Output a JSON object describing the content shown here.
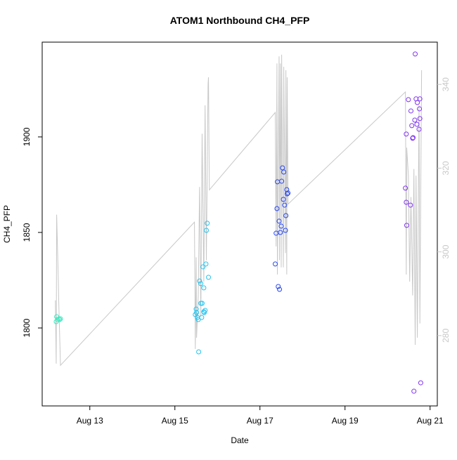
{
  "chart_data": {
    "type": "scatter",
    "title": "ATOM1 Northbound CH4_PFP",
    "x_label": "Date",
    "y_label": "CH4_PFP",
    "xlim": [
      11.88,
      21.17
    ],
    "xticks": [
      {
        "value": 13,
        "label": "Aug 13"
      },
      {
        "value": 15,
        "label": "Aug 15"
      },
      {
        "value": 17,
        "label": "Aug 17"
      },
      {
        "value": 19,
        "label": "Aug 19"
      },
      {
        "value": 21,
        "label": "Aug 21"
      }
    ],
    "ylim": [
      1759.2,
      1949.6
    ],
    "yticks": [
      1800,
      1850,
      1900
    ],
    "y2lim": [
      263.2,
      350.1
    ],
    "y2ticks": [
      280,
      300,
      320,
      340
    ],
    "grid": false,
    "series": [
      {
        "type": "line",
        "axis": "y2",
        "color": "#c8c8c8",
        "x": [
          12.19,
          12.21,
          12.22,
          12.26,
          12.27,
          12.31,
          15.46,
          15.48,
          15.5,
          15.51,
          15.55,
          15.58,
          15.61,
          15.64,
          15.68,
          15.71,
          15.74,
          15.78,
          15.79,
          15.81,
          17.36,
          17.38,
          17.4,
          17.41,
          17.45,
          17.46,
          17.48,
          17.5,
          17.51,
          17.55,
          17.56,
          17.6,
          17.61,
          17.63,
          17.64,
          17.66,
          20.42,
          20.44,
          20.45,
          20.49,
          20.52,
          20.55,
          20.59,
          20.62,
          20.65,
          20.67,
          20.7,
          20.74,
          20.76,
          20.8
        ],
        "values": [
          288.4,
          273.3,
          308.9,
          292.9,
          287.9,
          272.9,
          307.1,
          276.8,
          298.7,
          279.5,
          289.6,
          315.5,
          284.5,
          328.2,
          292.9,
          335.0,
          298.0,
          340.0,
          341.7,
          314.8,
          333.3,
          301.3,
          345.0,
          294.6,
          346.7,
          298.0,
          345.0,
          296.3,
          347.1,
          296.3,
          344.2,
          299.7,
          343.4,
          294.6,
          341.7,
          311.4,
          338.2,
          294.6,
          324.9,
          318.2,
          292.9,
          313.1,
          289.6,
          319.8,
          277.8,
          318.2,
          279.5,
          335.0,
          282.9,
          343.4
        ]
      },
      {
        "type": "scatter",
        "color": "#3fe8c0",
        "x": [
          12.21,
          12.22,
          12.24,
          12.27,
          12.31,
          12.29
        ],
        "values": [
          1803.3,
          1805.9,
          1804.4,
          1804.8,
          1804.8,
          1804.4
        ]
      },
      {
        "type": "scatter",
        "color": "#22c4f0",
        "x": [
          15.48,
          15.5,
          15.51,
          15.53,
          15.55,
          15.56,
          15.58,
          15.61,
          15.61,
          15.63,
          15.64,
          15.66,
          15.68,
          15.68,
          15.69,
          15.71,
          15.73,
          15.74,
          15.76,
          15.79
        ],
        "values": [
          1807.0,
          1809.9,
          1808.1,
          1805.5,
          1804.4,
          1787.5,
          1824.6,
          1823.2,
          1812.9,
          1805.5,
          1812.9,
          1832.0,
          1808.5,
          1821.0,
          1808.1,
          1809.2,
          1833.5,
          1851.1,
          1854.8,
          1826.5
        ]
      },
      {
        "type": "scatter",
        "color": "#2848f0",
        "x": [
          17.36,
          17.38,
          17.4,
          17.41,
          17.43,
          17.45,
          17.46,
          17.48,
          17.5,
          17.51,
          17.53,
          17.55,
          17.56,
          17.58,
          17.6,
          17.61,
          17.63,
          17.64,
          17.66
        ],
        "values": [
          1833.5,
          1849.6,
          1862.5,
          1876.5,
          1821.7,
          1855.9,
          1820.2,
          1850.0,
          1853.3,
          1876.8,
          1883.8,
          1867.3,
          1881.6,
          1864.3,
          1851.1,
          1858.8,
          1872.4,
          1870.2,
          1870.6
        ]
      },
      {
        "type": "scatter",
        "color": "#8034f0",
        "x": [
          20.42,
          20.44,
          20.44,
          20.45,
          20.49,
          20.54,
          20.55,
          20.57,
          20.59,
          20.6,
          20.62,
          20.64,
          20.65,
          20.67,
          20.69,
          20.7,
          20.74,
          20.75,
          20.76,
          20.76,
          20.78
        ],
        "values": [
          1873.2,
          1901.5,
          1865.8,
          1853.7,
          1919.5,
          1864.3,
          1913.6,
          1905.9,
          1899.3,
          1899.6,
          1766.9,
          1908.8,
          1943.4,
          1919.9,
          1906.6,
          1918.0,
          1904.0,
          1914.7,
          1919.9,
          1909.6,
          1771.3
        ]
      }
    ]
  }
}
